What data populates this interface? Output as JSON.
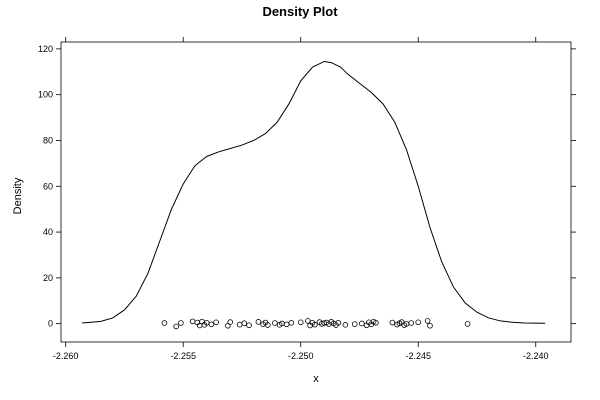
{
  "chart_data": {
    "type": "line",
    "title": "Density Plot",
    "xlabel": "x",
    "ylabel": "Density",
    "xlim": [
      -2.2602,
      -2.2385
    ],
    "ylim": [
      -8,
      123
    ],
    "x_ticks": [
      -2.26,
      -2.255,
      -2.25,
      -2.245,
      -2.24
    ],
    "x_tick_labels": [
      "-2.260",
      "-2.255",
      "-2.250",
      "-2.245",
      "-2.240"
    ],
    "y_ticks": [
      0,
      20,
      40,
      60,
      80,
      100,
      120
    ],
    "y_tick_labels": [
      "0",
      "20",
      "40",
      "60",
      "80",
      "100",
      "120"
    ],
    "grid": false,
    "density_curve": {
      "x": [
        -2.2593,
        -2.2585,
        -2.258,
        -2.2575,
        -2.257,
        -2.2565,
        -2.256,
        -2.2555,
        -2.255,
        -2.2545,
        -2.254,
        -2.2535,
        -2.253,
        -2.2525,
        -2.252,
        -2.2515,
        -2.251,
        -2.2505,
        -2.25,
        -2.2495,
        -2.249,
        -2.2487,
        -2.2483,
        -2.248,
        -2.2475,
        -2.247,
        -2.2465,
        -2.246,
        -2.2455,
        -2.245,
        -2.2445,
        -2.244,
        -2.2435,
        -2.243,
        -2.2425,
        -2.242,
        -2.2415,
        -2.241,
        -2.2405,
        -2.2396
      ],
      "y": [
        0.3,
        1,
        2.5,
        6,
        12,
        22,
        36,
        50,
        61,
        69,
        73,
        75,
        76.5,
        78,
        80,
        83,
        88,
        96,
        106,
        112,
        114.5,
        114,
        112,
        109,
        105,
        101,
        96,
        88,
        76,
        60,
        42,
        27,
        16,
        9,
        5,
        2.5,
        1.2,
        0.6,
        0.3,
        0.2
      ]
    },
    "rug_points": {
      "x": [
        -2.2558,
        -2.2553,
        -2.2551,
        -2.2546,
        -2.2544,
        -2.2543,
        -2.2542,
        -2.2541,
        -2.254,
        -2.2538,
        -2.2536,
        -2.2531,
        -2.253,
        -2.2526,
        -2.2524,
        -2.2522,
        -2.2518,
        -2.2516,
        -2.2515,
        -2.2514,
        -2.2511,
        -2.2509,
        -2.2508,
        -2.2506,
        -2.2504,
        -2.25,
        -2.2497,
        -2.2496,
        -2.2495,
        -2.2494,
        -2.2492,
        -2.2491,
        -2.249,
        -2.2489,
        -2.2488,
        -2.2487,
        -2.2486,
        -2.2485,
        -2.2484,
        -2.2481,
        -2.2477,
        -2.2474,
        -2.2472,
        -2.2471,
        -2.247,
        -2.2469,
        -2.2468,
        -2.2461,
        -2.2459,
        -2.2458,
        -2.2457,
        -2.2456,
        -2.2455,
        -2.2453,
        -2.245,
        -2.2446,
        -2.2445,
        -2.2429
      ],
      "y": [
        0.3,
        -1.2,
        0.3,
        1,
        0.5,
        -0.8,
        0.9,
        -0.5,
        0.4,
        -0.3,
        0.6,
        -0.9,
        0.7,
        -0.4,
        0.2,
        -0.7,
        0.8,
        -0.2,
        0.5,
        -0.6,
        0.3,
        -0.5,
        0.1,
        -0.3,
        0.4,
        0.6,
        1.2,
        -0.8,
        0.4,
        -0.4,
        0.7,
        -0.1,
        0.3,
        0.5,
        -0.2,
        0.8,
        0.1,
        -0.6,
        0.4,
        -0.5,
        -0.2,
        0.1,
        -0.7,
        0.6,
        -0.3,
        0.9,
        0.4,
        0.5,
        -0.4,
        0.2,
        0.7,
        -0.6,
        -0.1,
        0.3,
        0.6,
        1.2,
        -0.9,
        -0.1
      ]
    }
  }
}
